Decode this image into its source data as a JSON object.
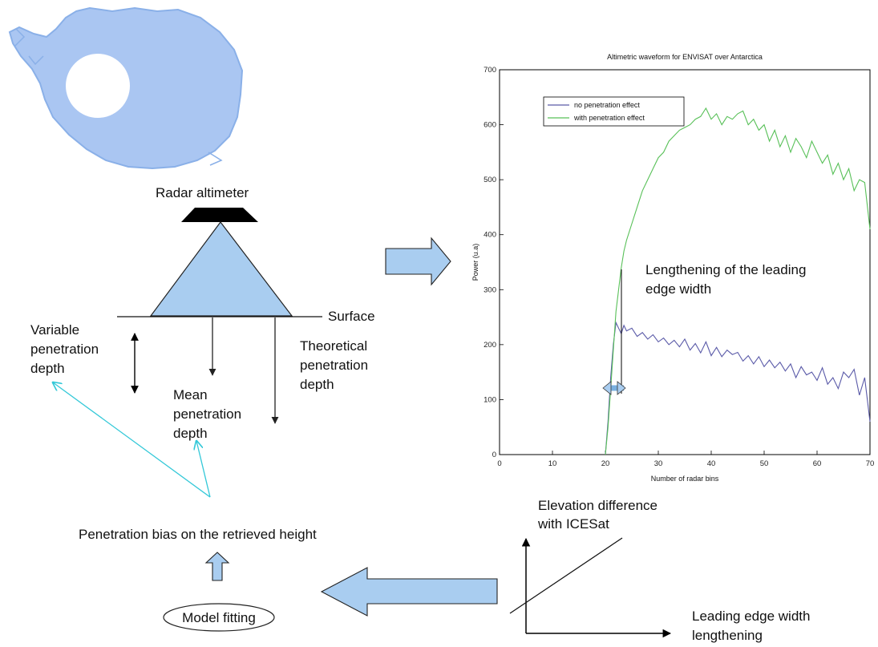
{
  "diagram": {
    "radar_label": "Radar altimeter",
    "surface_label": "Surface",
    "variable_depth": [
      "Variable",
      "penetration",
      "depth"
    ],
    "mean_depth": [
      "Mean",
      "penetration",
      "depth"
    ],
    "theoretical_depth": [
      "Theoretical",
      "penetration",
      "depth"
    ],
    "bias_label": "Penetration bias on the retrieved height",
    "model_fitting": "Model fitting",
    "elevation_label": [
      "Elevation difference",
      "with ICESat"
    ],
    "leading_edge_label": [
      "Leading edge width",
      "lengthening"
    ],
    "lengthening_label": [
      "Lengthening of the leading",
      "edge width"
    ],
    "colors": {
      "cone_fill": "#a9cdf0",
      "arrow_fill": "#a9cdf0",
      "map_fill": "#aac6f2",
      "cyan_arrow": "#33c8d8",
      "dark": "#000000"
    },
    "icons": [
      "antarctica-map-icon",
      "radar-altimeter-icon"
    ]
  },
  "chart_data": {
    "type": "line",
    "title": "Altimetric waveform for ENVISAT over Antarctica",
    "xlabel": "Number of radar bins",
    "ylabel": "Power (u.a)",
    "xlim": [
      0,
      70
    ],
    "ylim": [
      0,
      700
    ],
    "xticks": [
      0,
      10,
      20,
      30,
      40,
      50,
      60,
      70
    ],
    "yticks": [
      0,
      100,
      200,
      300,
      400,
      500,
      600,
      700
    ],
    "legend_position": "top-left",
    "grid": false,
    "series": [
      {
        "name": "no penetration effect",
        "color": "#5a5aa8",
        "x": [
          20,
          20.5,
          21,
          21.5,
          22,
          22.5,
          23,
          23.5,
          24,
          25,
          26,
          27,
          28,
          29,
          30,
          31,
          32,
          33,
          34,
          35,
          36,
          37,
          38,
          39,
          40,
          41,
          42,
          43,
          44,
          45,
          46,
          47,
          48,
          49,
          50,
          51,
          52,
          53,
          54,
          55,
          56,
          57,
          58,
          59,
          60,
          61,
          62,
          63,
          64,
          65,
          66,
          67,
          68,
          69,
          70
        ],
        "y": [
          0,
          60,
          140,
          200,
          240,
          230,
          220,
          235,
          225,
          230,
          215,
          222,
          210,
          218,
          205,
          212,
          200,
          208,
          196,
          210,
          190,
          202,
          185,
          205,
          180,
          195,
          178,
          190,
          182,
          186,
          170,
          180,
          165,
          178,
          160,
          172,
          158,
          168,
          152,
          165,
          140,
          160,
          145,
          150,
          135,
          158,
          128,
          140,
          120,
          150,
          140,
          155,
          108,
          140,
          60
        ]
      },
      {
        "name": "with penetration effect",
        "color": "#58c058",
        "x": [
          20,
          20.5,
          21,
          21.5,
          22,
          22.5,
          23,
          23.5,
          24,
          25,
          26,
          27,
          28,
          29,
          30,
          31,
          32,
          33,
          34,
          35,
          36,
          37,
          38,
          39,
          40,
          41,
          42,
          43,
          44,
          45,
          46,
          47,
          48,
          49,
          50,
          51,
          52,
          53,
          54,
          55,
          56,
          57,
          58,
          59,
          60,
          61,
          62,
          63,
          64,
          65,
          66,
          67,
          68,
          69,
          70
        ],
        "y": [
          0,
          50,
          120,
          190,
          260,
          300,
          340,
          370,
          390,
          420,
          450,
          480,
          500,
          520,
          540,
          550,
          570,
          580,
          590,
          595,
          600,
          610,
          615,
          630,
          610,
          620,
          600,
          615,
          610,
          620,
          625,
          600,
          610,
          590,
          600,
          570,
          590,
          560,
          580,
          550,
          575,
          560,
          540,
          570,
          550,
          530,
          545,
          510,
          530,
          500,
          520,
          480,
          500,
          495,
          410
        ]
      }
    ]
  }
}
